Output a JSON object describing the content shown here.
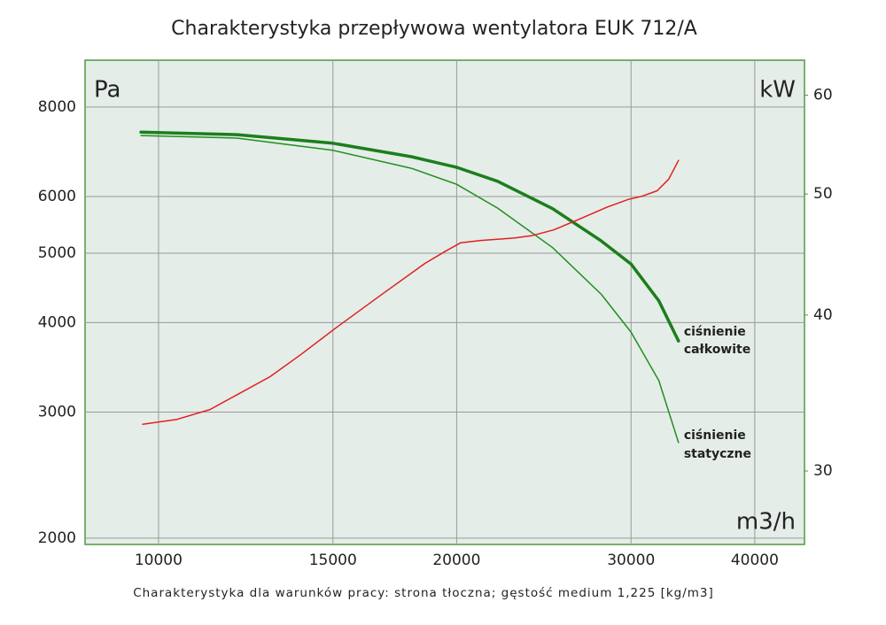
{
  "chart_data": {
    "type": "line",
    "title": "Charakterystyka przepływowa wentylatora EUK 712/A",
    "footnote": "Charakterystyka dla warunków pracy: strona tłoczna; gęstość medium 1,225 [kg/m3]",
    "y_unit": "Pa",
    "y2_unit": "kW",
    "x_unit": "m3/h",
    "xscale": "log",
    "yscale": "log",
    "y2scale": "log",
    "grid": true,
    "xlim": [
      8430,
      44900
    ],
    "xticks": [
      10000,
      15000,
      20000,
      30000,
      40000
    ],
    "ylim": [
      1960,
      9300
    ],
    "yticks": [
      2000,
      3000,
      4000,
      5000,
      6000,
      8000
    ],
    "y2lim": [
      26.2,
      64.0
    ],
    "y2ticks": [
      30,
      40,
      50,
      60
    ],
    "series": [
      {
        "label": [
          "ciśnienie",
          "całkowite"
        ],
        "color": "#1b7f1b",
        "width": 3.5,
        "axis": "y",
        "x": [
          9600,
          12000,
          15000,
          18000,
          20000,
          22000,
          25000,
          28000,
          30000,
          32000,
          33500
        ],
        "values": [
          7380,
          7320,
          7120,
          6820,
          6590,
          6300,
          5770,
          5200,
          4830,
          4290,
          3770
        ]
      },
      {
        "label": [
          "ciśnienie",
          "statyczne"
        ],
        "color": "#1f8f1f",
        "width": 1.5,
        "axis": "y",
        "x": [
          9600,
          12000,
          15000,
          18000,
          20000,
          22000,
          25000,
          28000,
          30000,
          32000,
          33500
        ],
        "values": [
          7300,
          7240,
          6960,
          6570,
          6240,
          5780,
          5090,
          4380,
          3880,
          3320,
          2720
        ]
      },
      {
        "color": "#e02020",
        "width": 1.5,
        "axis": "y2",
        "x": [
          9640,
          10440,
          11270,
          12060,
          12960,
          13930,
          15130,
          16770,
          18580,
          19490,
          20180,
          21160,
          22850,
          23800,
          25060,
          26380,
          28360,
          29800,
          30780,
          31880,
          32750,
          33500
        ],
        "values": [
          32.7,
          33.0,
          33.6,
          34.6,
          35.7,
          37.2,
          39.1,
          41.5,
          44.0,
          45.0,
          45.7,
          45.9,
          46.1,
          46.3,
          46.8,
          47.6,
          48.8,
          49.5,
          49.8,
          50.3,
          51.4,
          53.2
        ]
      }
    ]
  }
}
